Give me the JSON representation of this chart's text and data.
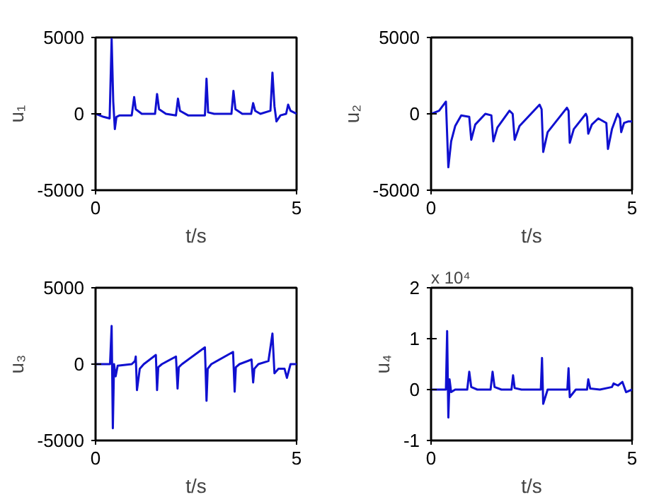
{
  "chart_data": [
    {
      "type": "line",
      "xlabel": "t/s",
      "ylabel": "u₁",
      "xlim": [
        0,
        5
      ],
      "ylim": [
        -5000,
        5000
      ],
      "xticks": [
        0,
        5
      ],
      "yticks": [
        -5000,
        0,
        5000
      ],
      "grid": false,
      "x": [
        0,
        0.2,
        0.35,
        0.4,
        0.44,
        0.48,
        0.52,
        0.6,
        0.9,
        0.96,
        1.0,
        1.15,
        1.48,
        1.53,
        1.58,
        1.75,
        2.0,
        2.05,
        2.1,
        2.3,
        2.72,
        2.76,
        2.8,
        2.95,
        3.38,
        3.43,
        3.48,
        3.65,
        3.87,
        3.92,
        3.97,
        4.1,
        4.35,
        4.4,
        4.45,
        4.5,
        4.6,
        4.74,
        4.79,
        4.85,
        5.0
      ],
      "series": [
        {
          "color": "#1010d0",
          "values": [
            0,
            -200,
            -300,
            4900,
            800,
            -1000,
            -200,
            -100,
            -100,
            1100,
            300,
            0,
            0,
            1300,
            300,
            0,
            -100,
            1000,
            200,
            -100,
            -100,
            2300,
            100,
            0,
            0,
            1500,
            300,
            0,
            0,
            700,
            200,
            0,
            200,
            2700,
            500,
            -500,
            -100,
            0,
            600,
            200,
            0
          ]
        }
      ]
    },
    {
      "type": "line",
      "xlabel": "t/s",
      "ylabel": "u₂",
      "xlim": [
        0,
        5
      ],
      "ylim": [
        -5000,
        5000
      ],
      "xticks": [
        0,
        5
      ],
      "yticks": [
        -5000,
        0,
        5000
      ],
      "grid": false,
      "x": [
        0,
        0.2,
        0.37,
        0.43,
        0.5,
        0.6,
        0.75,
        0.95,
        1.0,
        1.1,
        1.35,
        1.5,
        1.55,
        1.65,
        1.95,
        2.03,
        2.08,
        2.2,
        2.7,
        2.75,
        2.79,
        2.9,
        3.38,
        3.42,
        3.45,
        3.55,
        3.85,
        3.88,
        3.91,
        4.0,
        4.16,
        4.36,
        4.4,
        4.5,
        4.64,
        4.7,
        4.73,
        4.8,
        4.9,
        5.0
      ],
      "series": [
        {
          "color": "#1010d0",
          "values": [
            0,
            200,
            800,
            -3500,
            -1800,
            -800,
            -100,
            -200,
            -1700,
            -700,
            0,
            -100,
            -1800,
            -900,
            200,
            0,
            -1700,
            -800,
            600,
            300,
            -2500,
            -1200,
            400,
            200,
            -1900,
            -1000,
            0,
            -200,
            -1300,
            -700,
            -300,
            -600,
            -2300,
            -1000,
            0,
            -300,
            -1200,
            -600,
            -500,
            -500
          ]
        }
      ]
    },
    {
      "type": "line",
      "xlabel": "t/s",
      "ylabel": "u₃",
      "xlim": [
        0,
        5
      ],
      "ylim": [
        -5000,
        5000
      ],
      "xticks": [
        0,
        5
      ],
      "yticks": [
        -5000,
        0,
        5000
      ],
      "grid": false,
      "x": [
        0,
        0.36,
        0.4,
        0.43,
        0.46,
        0.5,
        0.55,
        0.9,
        0.98,
        1.0,
        1.03,
        1.1,
        1.2,
        1.5,
        1.53,
        1.56,
        1.65,
        2.0,
        2.04,
        2.07,
        2.15,
        2.72,
        2.76,
        2.79,
        2.88,
        3.42,
        3.46,
        3.49,
        3.58,
        3.88,
        3.92,
        3.95,
        4.05,
        4.3,
        4.4,
        4.45,
        4.55,
        4.7,
        4.76,
        4.85,
        5.0
      ],
      "series": [
        {
          "color": "#1010d0",
          "values": [
            0,
            0,
            2500,
            -4200,
            0,
            -800,
            -100,
            0,
            200,
            500,
            -1700,
            -300,
            0,
            600,
            -1700,
            -200,
            0,
            500,
            -1600,
            -200,
            0,
            1100,
            -2400,
            -300,
            0,
            800,
            -1800,
            -200,
            0,
            300,
            -1200,
            -300,
            0,
            200,
            2000,
            -600,
            -300,
            -300,
            -900,
            0,
            0
          ]
        }
      ]
    },
    {
      "type": "line",
      "xlabel": "t/s",
      "ylabel": "u₄",
      "xlim": [
        0,
        5
      ],
      "ylim": [
        -1,
        2
      ],
      "xticks": [
        0,
        5
      ],
      "yticks": [
        -1,
        0,
        1,
        2
      ],
      "grid": false,
      "annotations": [
        "x 10⁴"
      ],
      "x": [
        0,
        0.37,
        0.4,
        0.43,
        0.46,
        0.5,
        0.6,
        0.9,
        0.95,
        1.0,
        1.15,
        1.48,
        1.53,
        1.58,
        1.75,
        2.0,
        2.04,
        2.08,
        2.25,
        2.73,
        2.76,
        2.79,
        2.9,
        3.39,
        3.42,
        3.45,
        3.6,
        3.88,
        3.91,
        3.96,
        4.2,
        4.5,
        4.54,
        4.65,
        4.76,
        4.85,
        5.0
      ],
      "series": [
        {
          "color": "#1010d0",
          "values": [
            0,
            0,
            1.15,
            -0.55,
            0.2,
            -0.05,
            0,
            0,
            0.35,
            0.05,
            0,
            0,
            0.35,
            0.05,
            0,
            0,
            0.28,
            0.03,
            0,
            0,
            0.62,
            -0.28,
            0,
            0,
            0.42,
            -0.15,
            0,
            0,
            0.2,
            0.02,
            0,
            0.05,
            0.12,
            0.08,
            0.15,
            -0.05,
            0
          ]
        }
      ]
    }
  ]
}
